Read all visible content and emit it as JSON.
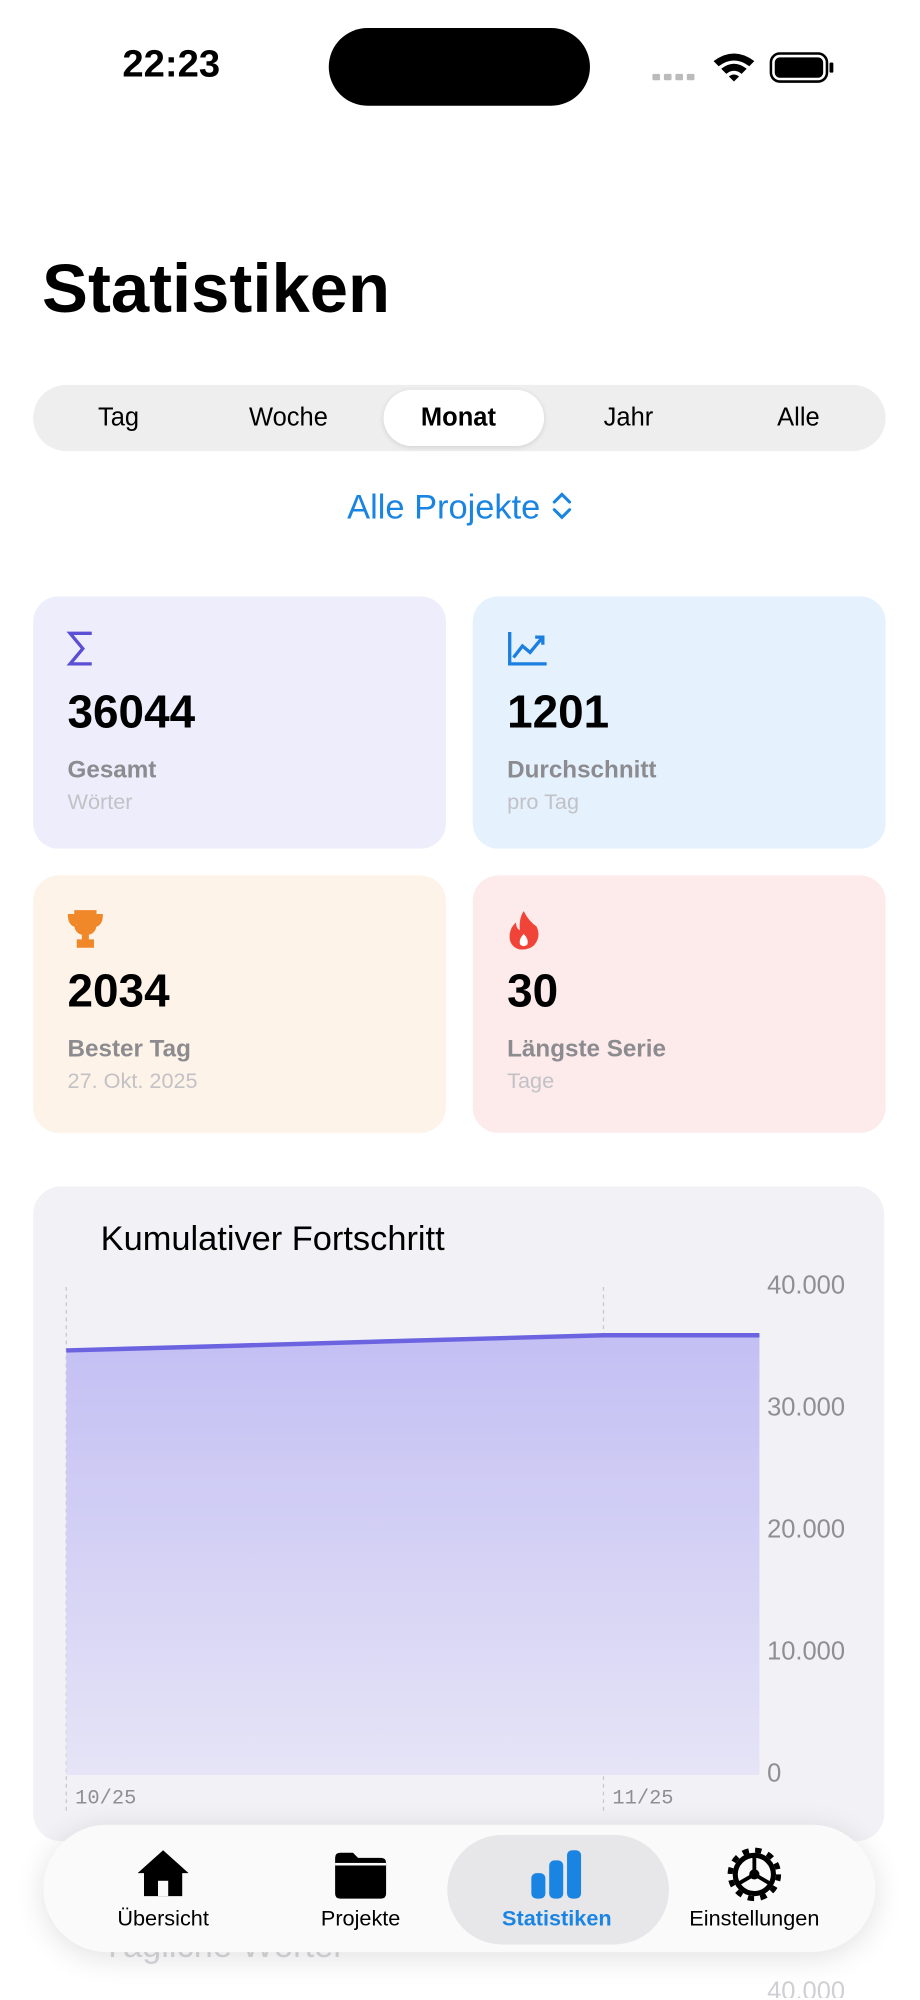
{
  "status_bar": {
    "time": "22:23"
  },
  "header": {
    "title": "Statistiken"
  },
  "segments": {
    "items": [
      "Tag",
      "Woche",
      "Monat",
      "Jahr",
      "Alle"
    ],
    "selected_index": 2
  },
  "project_picker": "Alle Projekte",
  "stats": [
    {
      "value": 36044,
      "label": "Gesamt",
      "sublabel": "Wörter"
    },
    {
      "value": 1201,
      "label": "Durchschnitt",
      "sublabel": "pro Tag"
    },
    {
      "value": 2034,
      "label": "Bester Tag",
      "sublabel": "27. Okt. 2025"
    },
    {
      "value": 30,
      "label": "Längste Serie",
      "sublabel": "Tage"
    }
  ],
  "chart_data": {
    "type": "area",
    "title": "Kumulativer Fortschritt",
    "x": [
      0,
      10,
      20,
      31,
      40
    ],
    "series": [
      {
        "color": "#6b63e0",
        "values": [
          34800,
          35200,
          35600,
          36044,
          36044
        ]
      }
    ],
    "xlim": [
      0,
      40
    ],
    "xticks": [
      {
        "value": 0,
        "label": "10/25"
      },
      {
        "value": 31,
        "label": "11/25"
      }
    ],
    "ylim": [
      0,
      40000
    ],
    "yticks": [
      0,
      {
        "value": 10000,
        "label": "10.000"
      },
      {
        "value": 20000,
        "label": "20.000"
      },
      {
        "value": 30000,
        "label": "30.000"
      },
      {
        "value": 40000,
        "label": "40.000"
      }
    ]
  },
  "next_section": {
    "title": "Tägliche Wörter",
    "tick": "40.000"
  },
  "tab_bar": {
    "items": [
      "Übersicht",
      "Projekte",
      "Statistiken",
      "Einstellungen"
    ],
    "selected_index": 2
  }
}
